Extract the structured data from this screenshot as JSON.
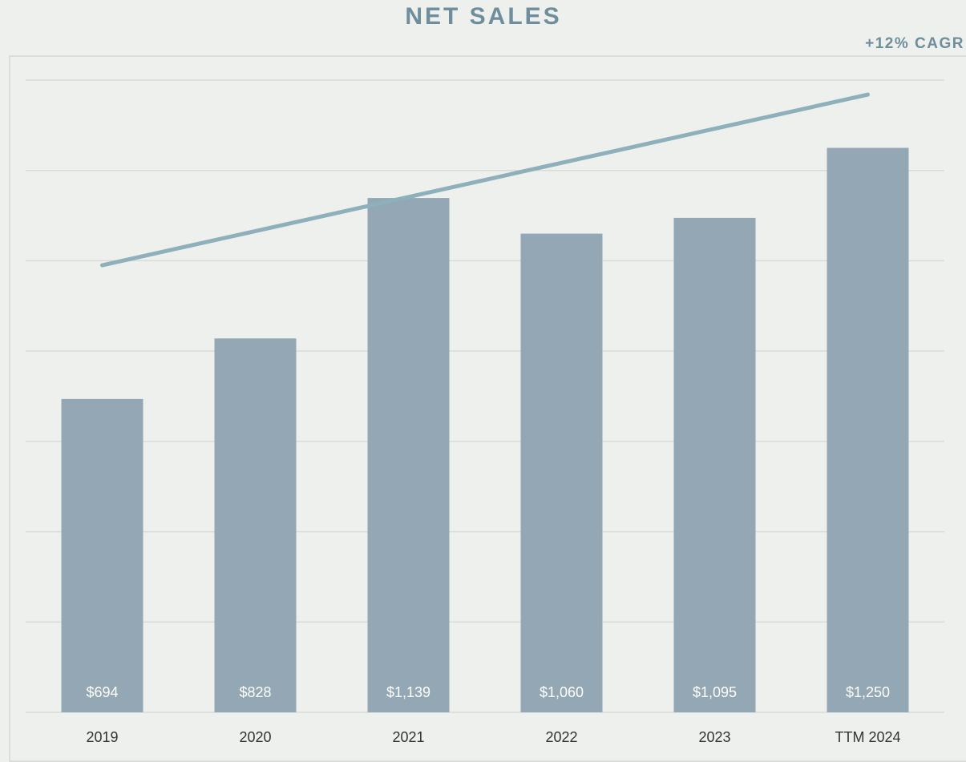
{
  "chart_data": {
    "type": "bar",
    "title": "NET SALES",
    "annotation": "+12% CAGR",
    "categories": [
      "2019",
      "2020",
      "2021",
      "2022",
      "2023",
      "TTM 2024"
    ],
    "values": [
      694,
      828,
      1139,
      1060,
      1095,
      1250
    ],
    "value_labels": [
      "$694",
      "$828",
      "$1,139",
      "$1,060",
      "$1,095",
      "$1,250"
    ],
    "color": "#93a8b4",
    "trendline": {
      "values": [
        990,
        1368
      ],
      "color": "#8eb0ba"
    },
    "ylim": [
      0,
      1400
    ],
    "yticks": [
      0,
      200,
      400,
      600,
      800,
      1000,
      1200,
      1400
    ],
    "grid": true
  }
}
